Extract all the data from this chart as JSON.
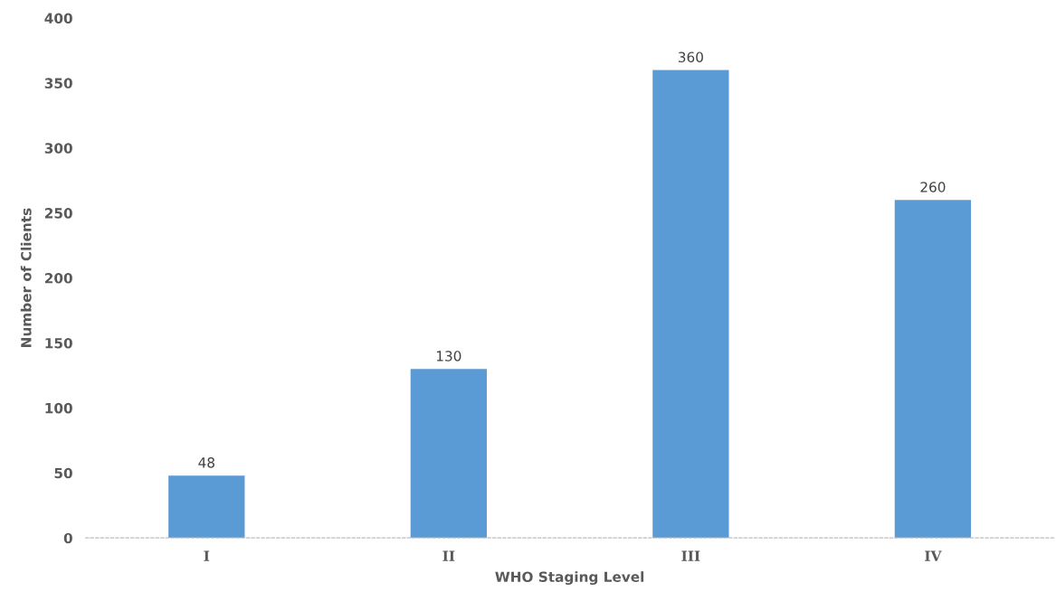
{
  "chart_data": {
    "type": "bar",
    "xlabel": "WHO Staging Level",
    "ylabel": "Number of Clients",
    "categories": [
      "I",
      "II",
      "III",
      "IV"
    ],
    "values": [
      48,
      130,
      360,
      260
    ],
    "color": "#5b9bd5",
    "ylim": [
      0,
      400
    ],
    "yticks": [
      0,
      50,
      100,
      150,
      200,
      250,
      300,
      350,
      400
    ],
    "data_labels": true,
    "grid": false
  }
}
